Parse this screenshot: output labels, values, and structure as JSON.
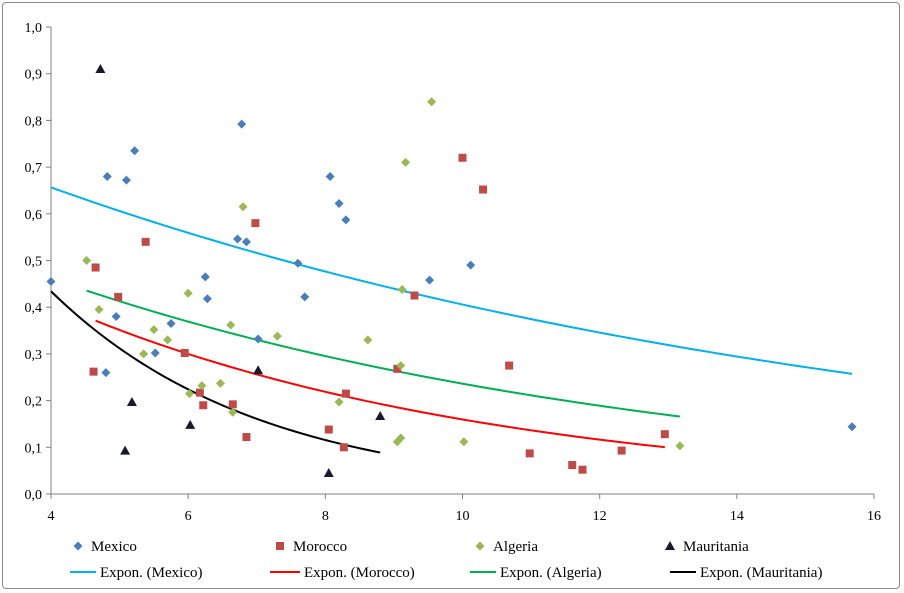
{
  "chart_data": {
    "type": "scatter",
    "title": "",
    "xlabel": "",
    "ylabel": "",
    "xlim": [
      4,
      16
    ],
    "ylim": [
      0,
      1
    ],
    "x_ticks": [
      "4",
      "6",
      "8",
      "10",
      "12",
      "14",
      "16"
    ],
    "y_ticks": [
      "0,0",
      "0,1",
      "0,2",
      "0,3",
      "0,4",
      "0,5",
      "0,6",
      "0,7",
      "0,8",
      "0,9",
      "1,0"
    ],
    "grid": false,
    "legend_position": "bottom",
    "series": [
      {
        "name": "Mexico",
        "marker": "diamond",
        "color": "#4a7ebb",
        "points": [
          [
            4.0,
            0.455
          ],
          [
            4.8,
            0.26
          ],
          [
            4.82,
            0.68
          ],
          [
            4.95,
            0.38
          ],
          [
            5.1,
            0.672
          ],
          [
            5.22,
            0.735
          ],
          [
            5.52,
            0.302
          ],
          [
            5.75,
            0.365
          ],
          [
            6.25,
            0.465
          ],
          [
            6.28,
            0.418
          ],
          [
            6.72,
            0.546
          ],
          [
            6.78,
            0.792
          ],
          [
            6.85,
            0.54
          ],
          [
            7.02,
            0.332
          ],
          [
            7.6,
            0.494
          ],
          [
            7.7,
            0.422
          ],
          [
            8.07,
            0.68
          ],
          [
            8.2,
            0.622
          ],
          [
            8.3,
            0.587
          ],
          [
            9.52,
            0.458
          ],
          [
            10.12,
            0.49
          ],
          [
            15.68,
            0.144
          ]
        ]
      },
      {
        "name": "Morocco",
        "marker": "square",
        "color": "#be4b48",
        "points": [
          [
            4.62,
            0.262
          ],
          [
            4.65,
            0.485
          ],
          [
            4.98,
            0.422
          ],
          [
            5.38,
            0.54
          ],
          [
            5.95,
            0.302
          ],
          [
            6.17,
            0.217
          ],
          [
            6.22,
            0.19
          ],
          [
            6.65,
            0.192
          ],
          [
            6.85,
            0.122
          ],
          [
            6.98,
            0.58
          ],
          [
            8.05,
            0.138
          ],
          [
            8.27,
            0.1
          ],
          [
            8.3,
            0.215
          ],
          [
            9.3,
            0.425
          ],
          [
            9.05,
            0.268
          ],
          [
            10.0,
            0.72
          ],
          [
            10.3,
            0.652
          ],
          [
            10.68,
            0.275
          ],
          [
            10.98,
            0.087
          ],
          [
            11.6,
            0.062
          ],
          [
            11.75,
            0.052
          ],
          [
            12.32,
            0.093
          ],
          [
            12.95,
            0.128
          ]
        ]
      },
      {
        "name": "Algeria",
        "marker": "diamond",
        "color": "#98b954",
        "points": [
          [
            4.52,
            0.5
          ],
          [
            4.7,
            0.395
          ],
          [
            5.35,
            0.3
          ],
          [
            5.5,
            0.352
          ],
          [
            5.7,
            0.33
          ],
          [
            6.0,
            0.43
          ],
          [
            6.02,
            0.215
          ],
          [
            6.2,
            0.232
          ],
          [
            6.47,
            0.237
          ],
          [
            6.62,
            0.362
          ],
          [
            6.65,
            0.175
          ],
          [
            6.8,
            0.615
          ],
          [
            7.3,
            0.338
          ],
          [
            8.2,
            0.197
          ],
          [
            8.62,
            0.33
          ],
          [
            9.05,
            0.112
          ],
          [
            9.1,
            0.12
          ],
          [
            9.1,
            0.275
          ],
          [
            9.12,
            0.438
          ],
          [
            9.17,
            0.71
          ],
          [
            9.55,
            0.84
          ],
          [
            10.02,
            0.112
          ],
          [
            13.17,
            0.103
          ]
        ]
      },
      {
        "name": "Mauritania",
        "marker": "triangle",
        "color": "#1a1a2e",
        "points": [
          [
            4.72,
            0.91
          ],
          [
            5.08,
            0.093
          ],
          [
            5.18,
            0.197
          ],
          [
            6.03,
            0.148
          ],
          [
            7.02,
            0.265
          ],
          [
            8.05,
            0.045
          ],
          [
            8.8,
            0.167
          ]
        ]
      }
    ],
    "trendlines": [
      {
        "name": "Expon. (Mexico)",
        "type": "exponential",
        "color": "#00b0f0",
        "a": 0.9049,
        "b": -0.0802,
        "x_range": [
          4.0,
          15.68
        ]
      },
      {
        "name": "Expon. (Morocco)",
        "type": "exponential",
        "color": "#ff0000",
        "a": 0.7727,
        "b": -0.1577,
        "x_range": [
          4.65,
          12.95
        ]
      },
      {
        "name": "Expon. (Algeria)",
        "type": "exponential",
        "color": "#00b050",
        "a": 0.7212,
        "b": -0.1116,
        "x_range": [
          4.52,
          13.17
        ]
      },
      {
        "name": "Expon. (Mauritania)",
        "type": "exponential",
        "color": "#000000",
        "a": 1.6296,
        "b": -0.3307,
        "x_range": [
          4.0,
          8.8
        ]
      }
    ]
  }
}
